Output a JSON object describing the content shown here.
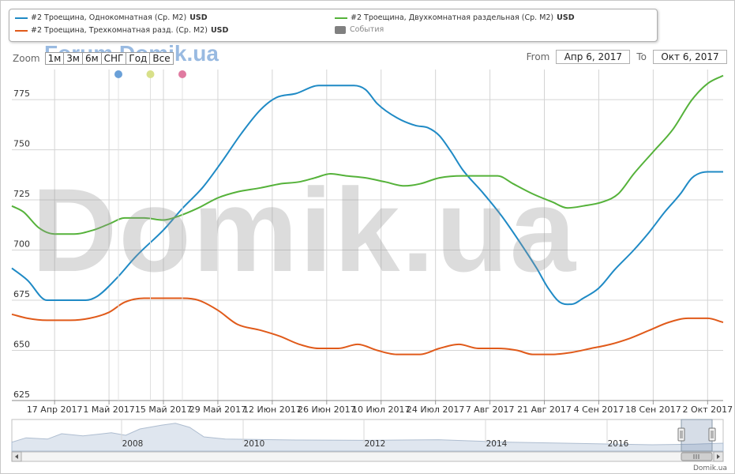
{
  "legend": {
    "series": [
      {
        "label": "#2 Троещина, Однокомнатная (Ср. М2)",
        "unit": "USD",
        "color": "#1f8ac5"
      },
      {
        "label": "#2 Троещина, Двухкомнатная раздельная (Ср. М2)",
        "unit": "USD",
        "color": "#55b23a"
      },
      {
        "label": "#2 Троещина, Трехкомнатная разд. (Ср. М2)",
        "unit": "USD",
        "color": "#e05a1a"
      }
    ],
    "events_label": "События",
    "events_color": "#808080"
  },
  "toolbar": {
    "zoom_label": "Zoom",
    "zoom_buttons": [
      "1м",
      "3м",
      "6м",
      "СНГ",
      "Год",
      "Все"
    ],
    "from_label": "From",
    "from_value": "Апр 6, 2017",
    "to_label": "To",
    "to_value": "Окт 6, 2017"
  },
  "watermarks": {
    "forum": "Forum.Domik.ua",
    "big": "Domik.ua",
    "credit": "Domik.ua"
  },
  "flag_colors": [
    "#6aa0d8",
    "#d8e08a",
    "#e07aa0"
  ],
  "navigator": {
    "year_labels": [
      "2008",
      "2010",
      "2012",
      "2014",
      "2016"
    ]
  },
  "chart_data": {
    "type": "line",
    "x_type": "date",
    "x_range": [
      "2017-04-06",
      "2017-10-06"
    ],
    "ylim": [
      625,
      790
    ],
    "y_ticks": [
      625,
      650,
      675,
      700,
      725,
      750,
      775
    ],
    "x_tick_dates": [
      "2017-04-17",
      "2017-05-01",
      "2017-05-15",
      "2017-05-29",
      "2017-06-12",
      "2017-06-26",
      "2017-07-10",
      "2017-07-24",
      "2017-08-07",
      "2017-08-21",
      "2017-09-04",
      "2017-09-18",
      "2017-10-02"
    ],
    "x_tick_labels": [
      "17 Апр 2017",
      "1 Май 2017",
      "15 Май 2017",
      "29 Май 2017",
      "12 Июн 2017",
      "26 Июн 2017",
      "10 Июл 2017",
      "24 Июл 2017",
      "7 Авг 2017",
      "21 Авг 2017",
      "4 Сен 2017",
      "18 Сен 2017",
      "2 Окт 2017"
    ],
    "grid": true,
    "series": [
      {
        "name": "#2 Троещина, Однокомнатная (Ср. М2)",
        "color": "#1f8ac5",
        "points": [
          [
            "2017-04-06",
            691
          ],
          [
            "2017-04-10",
            685
          ],
          [
            "2017-04-15",
            675
          ],
          [
            "2017-04-20",
            675
          ],
          [
            "2017-04-25",
            675
          ],
          [
            "2017-04-28",
            677
          ],
          [
            "2017-05-03",
            686
          ],
          [
            "2017-05-08",
            697
          ],
          [
            "2017-05-15",
            710
          ],
          [
            "2017-05-20",
            721
          ],
          [
            "2017-05-25",
            731
          ],
          [
            "2017-05-30",
            744
          ],
          [
            "2017-06-04",
            758
          ],
          [
            "2017-06-09",
            770
          ],
          [
            "2017-06-13",
            776
          ],
          [
            "2017-06-18",
            778
          ],
          [
            "2017-06-24",
            782
          ],
          [
            "2017-06-28",
            782
          ],
          [
            "2017-07-03",
            782
          ],
          [
            "2017-07-06",
            780
          ],
          [
            "2017-07-09",
            773
          ],
          [
            "2017-07-14",
            766
          ],
          [
            "2017-07-19",
            762
          ],
          [
            "2017-07-22",
            761
          ],
          [
            "2017-07-25",
            757
          ],
          [
            "2017-07-28",
            749
          ],
          [
            "2017-07-31",
            740
          ],
          [
            "2017-08-05",
            729
          ],
          [
            "2017-08-10",
            717
          ],
          [
            "2017-08-15",
            703
          ],
          [
            "2017-08-19",
            691
          ],
          [
            "2017-08-22",
            681
          ],
          [
            "2017-08-25",
            674
          ],
          [
            "2017-08-28",
            673
          ],
          [
            "2017-08-31",
            676
          ],
          [
            "2017-09-04",
            681
          ],
          [
            "2017-09-08",
            690
          ],
          [
            "2017-09-13",
            700
          ],
          [
            "2017-09-17",
            709
          ],
          [
            "2017-09-21",
            719
          ],
          [
            "2017-09-25",
            728
          ],
          [
            "2017-09-28",
            736
          ],
          [
            "2017-10-02",
            739
          ],
          [
            "2017-10-06",
            739
          ]
        ]
      },
      {
        "name": "#2 Троещина, Двухкомнатная раздельная (Ср. М2)",
        "color": "#55b23a",
        "points": [
          [
            "2017-04-06",
            722
          ],
          [
            "2017-04-09",
            719
          ],
          [
            "2017-04-13",
            711
          ],
          [
            "2017-04-17",
            708
          ],
          [
            "2017-04-22",
            708
          ],
          [
            "2017-04-27",
            710
          ],
          [
            "2017-05-01",
            713
          ],
          [
            "2017-05-05",
            716
          ],
          [
            "2017-05-10",
            716
          ],
          [
            "2017-05-15",
            715
          ],
          [
            "2017-05-19",
            717
          ],
          [
            "2017-05-24",
            721
          ],
          [
            "2017-05-29",
            726
          ],
          [
            "2017-06-03",
            729
          ],
          [
            "2017-06-09",
            731
          ],
          [
            "2017-06-14",
            733
          ],
          [
            "2017-06-19",
            734
          ],
          [
            "2017-06-23",
            736
          ],
          [
            "2017-06-27",
            738
          ],
          [
            "2017-07-01",
            737
          ],
          [
            "2017-07-06",
            736
          ],
          [
            "2017-07-11",
            734
          ],
          [
            "2017-07-16",
            732
          ],
          [
            "2017-07-20",
            733
          ],
          [
            "2017-07-25",
            736
          ],
          [
            "2017-07-31",
            737
          ],
          [
            "2017-08-05",
            737
          ],
          [
            "2017-08-09",
            737
          ],
          [
            "2017-08-13",
            733
          ],
          [
            "2017-08-18",
            728
          ],
          [
            "2017-08-23",
            724
          ],
          [
            "2017-08-27",
            721
          ],
          [
            "2017-08-31",
            722
          ],
          [
            "2017-09-05",
            724
          ],
          [
            "2017-09-09",
            728
          ],
          [
            "2017-09-13",
            738
          ],
          [
            "2017-09-18",
            749
          ],
          [
            "2017-09-23",
            760
          ],
          [
            "2017-09-28",
            775
          ],
          [
            "2017-10-02",
            783
          ],
          [
            "2017-10-06",
            787
          ]
        ]
      },
      {
        "name": "#2 Троещина, Трехкомнатная разд. (Ср. М2)",
        "color": "#e05a1a",
        "points": [
          [
            "2017-04-06",
            668
          ],
          [
            "2017-04-10",
            666
          ],
          [
            "2017-04-15",
            665
          ],
          [
            "2017-04-21",
            665
          ],
          [
            "2017-04-26",
            666
          ],
          [
            "2017-05-01",
            669
          ],
          [
            "2017-05-05",
            674
          ],
          [
            "2017-05-10",
            676
          ],
          [
            "2017-05-15",
            676
          ],
          [
            "2017-05-20",
            676
          ],
          [
            "2017-05-24",
            675
          ],
          [
            "2017-05-29",
            670
          ],
          [
            "2017-06-03",
            663
          ],
          [
            "2017-06-09",
            660
          ],
          [
            "2017-06-14",
            657
          ],
          [
            "2017-06-19",
            653
          ],
          [
            "2017-06-24",
            651
          ],
          [
            "2017-06-29",
            651
          ],
          [
            "2017-07-04",
            653
          ],
          [
            "2017-07-09",
            650
          ],
          [
            "2017-07-14",
            648
          ],
          [
            "2017-07-20",
            648
          ],
          [
            "2017-07-25",
            651
          ],
          [
            "2017-07-30",
            653
          ],
          [
            "2017-08-04",
            651
          ],
          [
            "2017-08-09",
            651
          ],
          [
            "2017-08-14",
            650
          ],
          [
            "2017-08-18",
            648
          ],
          [
            "2017-08-23",
            648
          ],
          [
            "2017-08-28",
            649
          ],
          [
            "2017-09-02",
            651
          ],
          [
            "2017-09-07",
            653
          ],
          [
            "2017-09-12",
            656
          ],
          [
            "2017-09-17",
            660
          ],
          [
            "2017-09-22",
            664
          ],
          [
            "2017-09-27",
            666
          ],
          [
            "2017-10-02",
            666
          ],
          [
            "2017-10-06",
            664
          ]
        ]
      }
    ]
  }
}
